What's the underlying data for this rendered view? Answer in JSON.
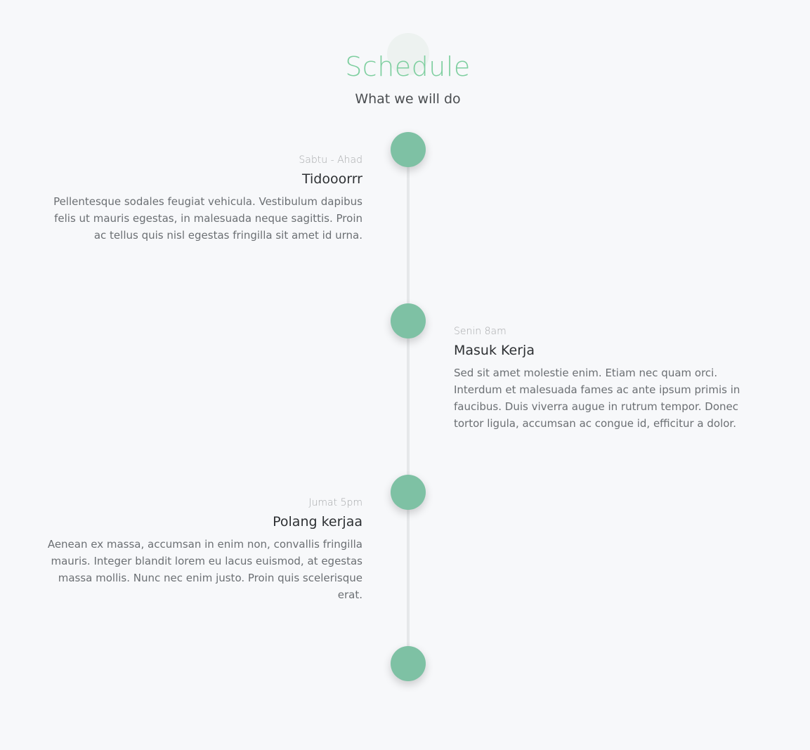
{
  "header": {
    "title": "Schedule",
    "subtitle": "What we will do"
  },
  "colors": {
    "accent": "#7fcfa0",
    "dot": "#7ec1a4",
    "background": "#f7f8fa",
    "line": "#e6e8ea"
  },
  "timeline": {
    "items": [
      {
        "time": "Sabtu - Ahad",
        "title": "Tidooorrr",
        "description": "Pellentesque sodales feugiat vehicula. Vestibulum dapibus felis ut mauris egestas, in malesuada neque sagittis. Proin ac tellus quis nisl egestas fringilla sit amet id urna."
      },
      {
        "time": "Senin 8am",
        "title": "Masuk Kerja",
        "description": "Sed sit amet molestie enim. Etiam nec quam orci. Interdum et malesuada fames ac ante ipsum primis in faucibus. Duis viverra augue in rutrum tempor. Donec tortor ligula, accumsan ac congue id, efficitur a dolor."
      },
      {
        "time": "Jumat 5pm",
        "title": "Polang kerjaa",
        "description": "Aenean ex massa, accumsan in enim non, convallis fringilla mauris. Integer blandit lorem eu lacus euismod, at egestas massa mollis. Nunc nec enim justo. Proin quis scelerisque erat."
      }
    ]
  }
}
